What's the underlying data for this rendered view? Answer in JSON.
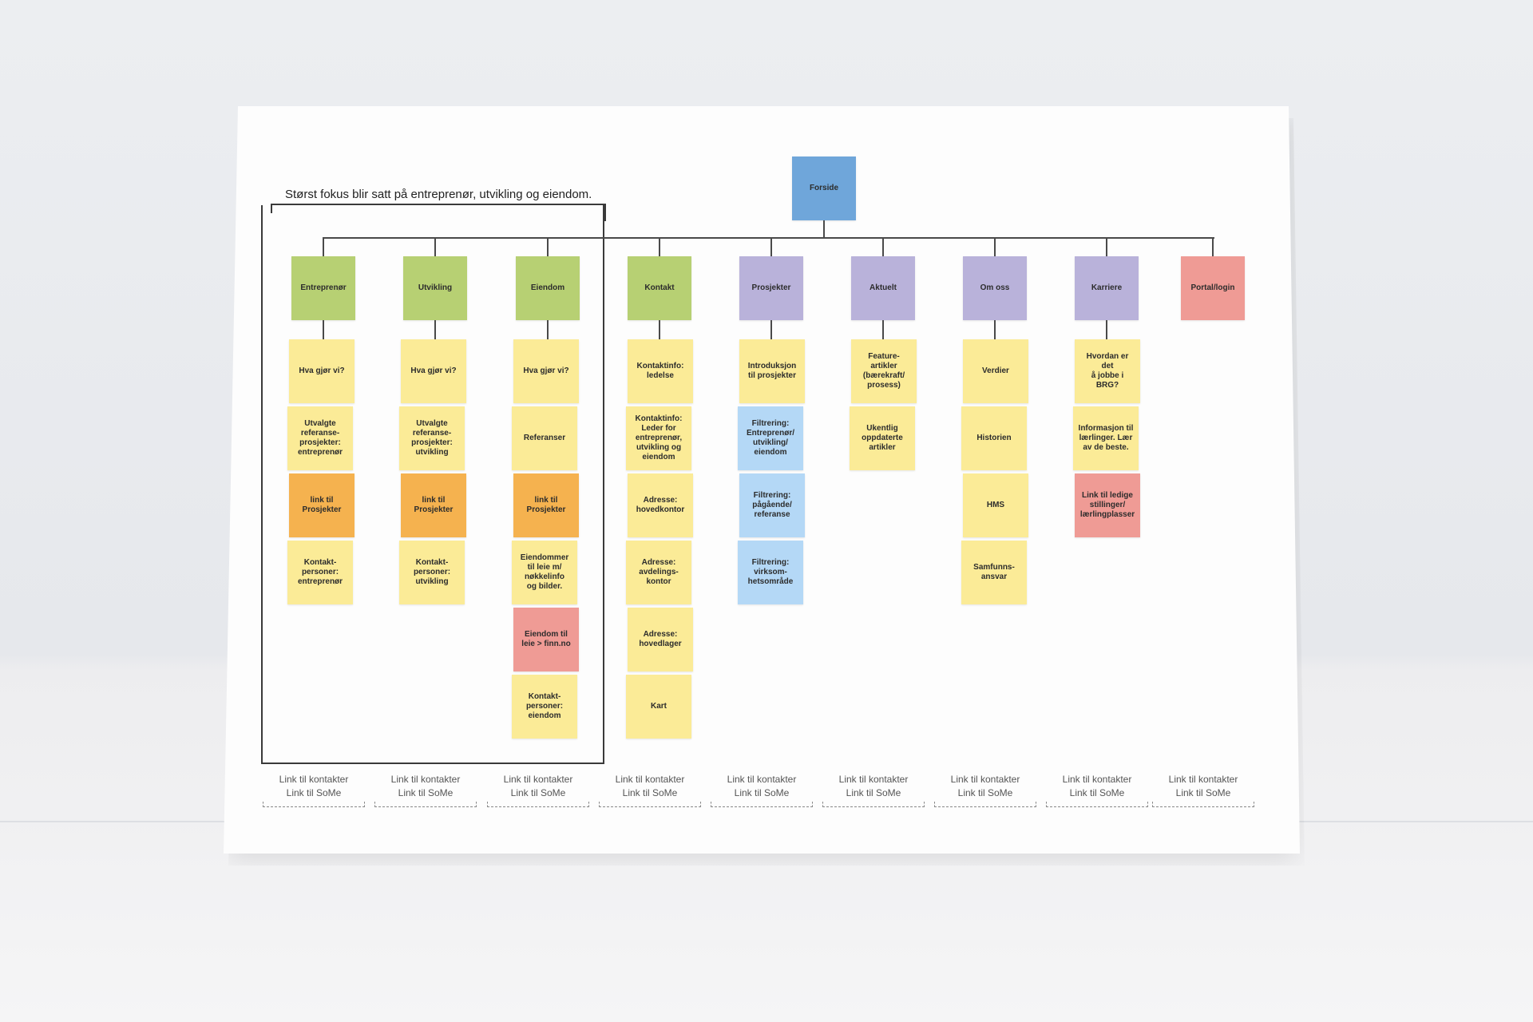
{
  "colors": {
    "root": "#6fa6da",
    "green": "#b7d073",
    "purple": "#b9b2da",
    "pink": "#ef9b95",
    "yellow": "#fbeb97",
    "orange": "#f5b24f",
    "blue": "#b4d8f6"
  },
  "root": {
    "label": "Forside",
    "color": "root"
  },
  "focus_note": "Størst fokus blir satt på entreprenør, utvikling og eiendom.",
  "columns": [
    {
      "label": "Entreprenør",
      "color": "green",
      "items": [
        {
          "label": "Hva gjør vi?",
          "color": "yellow"
        },
        {
          "label": "Utvalgte\nreferanse-\nprosjekter:\nentreprenør",
          "color": "yellow"
        },
        {
          "label": "link til\nProsjekter",
          "color": "orange"
        },
        {
          "label": "Kontakt-\npersoner:\nentreprenør",
          "color": "yellow"
        }
      ],
      "footer": [
        "Link til kontakter",
        "Link til SoMe"
      ]
    },
    {
      "label": "Utvikling",
      "color": "green",
      "items": [
        {
          "label": "Hva gjør vi?",
          "color": "yellow"
        },
        {
          "label": "Utvalgte\nreferanse-\nprosjekter:\nutvikling",
          "color": "yellow"
        },
        {
          "label": "link til\nProsjekter",
          "color": "orange"
        },
        {
          "label": "Kontakt-\npersoner:\nutvikling",
          "color": "yellow"
        }
      ],
      "footer": [
        "Link til kontakter",
        "Link til SoMe"
      ]
    },
    {
      "label": "Eiendom",
      "color": "green",
      "items": [
        {
          "label": "Hva gjør vi?",
          "color": "yellow"
        },
        {
          "label": "Referanser",
          "color": "yellow"
        },
        {
          "label": "link til\nProsjekter",
          "color": "orange"
        },
        {
          "label": "Eiendommer\ntil leie m/\nnøkkelinfo\nog bilder.",
          "color": "yellow"
        },
        {
          "label": "Eiendom til\nleie > finn.no",
          "color": "pink"
        },
        {
          "label": "Kontakt-\npersoner:\neiendom",
          "color": "yellow"
        }
      ],
      "footer": [
        "Link til kontakter",
        "Link til SoMe"
      ]
    },
    {
      "label": "Kontakt",
      "color": "green",
      "items": [
        {
          "label": "Kontaktinfo:\nledelse",
          "color": "yellow"
        },
        {
          "label": "Kontaktinfo:\nLeder for\nentreprenør,\nutvikling og\neiendom",
          "color": "yellow"
        },
        {
          "label": "Adresse:\nhovedkontor",
          "color": "yellow"
        },
        {
          "label": "Adresse:\navdelings-\nkontor",
          "color": "yellow"
        },
        {
          "label": "Adresse:\nhovedlager",
          "color": "yellow"
        },
        {
          "label": "Kart",
          "color": "yellow"
        }
      ],
      "footer": [
        "Link til kontakter",
        "Link til SoMe"
      ]
    },
    {
      "label": "Prosjekter",
      "color": "purple",
      "items": [
        {
          "label": "Introduksjon\ntil prosjekter",
          "color": "yellow"
        },
        {
          "label": "Filtrering:\nEntreprenør/\nutvikling/\neiendom",
          "color": "blue"
        },
        {
          "label": "Filtrering:\npågående/\nreferanse",
          "color": "blue"
        },
        {
          "label": "Filtrering:\nvirksom-\nhetsområde",
          "color": "blue"
        }
      ],
      "footer": [
        "Link til kontakter",
        "Link til SoMe"
      ]
    },
    {
      "label": "Aktuelt",
      "color": "purple",
      "items": [
        {
          "label": "Feature-\nartikler\n(bærekraft/\nprosess)",
          "color": "yellow"
        },
        {
          "label": "Ukentlig\noppdaterte\nartikler",
          "color": "yellow"
        }
      ],
      "footer": [
        "Link til kontakter",
        "Link til SoMe"
      ]
    },
    {
      "label": "Om oss",
      "color": "purple",
      "items": [
        {
          "label": "Verdier",
          "color": "yellow"
        },
        {
          "label": "Historien",
          "color": "yellow"
        },
        {
          "label": "HMS",
          "color": "yellow"
        },
        {
          "label": "Samfunns-\nansvar",
          "color": "yellow"
        }
      ],
      "footer": [
        "Link til kontakter",
        "Link til SoMe"
      ]
    },
    {
      "label": "Karriere",
      "color": "purple",
      "items": [
        {
          "label": "Hvordan er det\nå jobbe i BRG?",
          "color": "yellow"
        },
        {
          "label": "Informasjon til\nlærlinger. Lær\nav de beste.",
          "color": "yellow"
        },
        {
          "label": "Link til ledige\nstillinger/\nlærlingplasser",
          "color": "pink"
        }
      ],
      "footer": [
        "Link til kontakter",
        "Link til SoMe"
      ]
    },
    {
      "label": "Portal/login",
      "color": "pink",
      "items": [],
      "footer": [
        "Link til kontakter",
        "Link til SoMe"
      ]
    }
  ]
}
